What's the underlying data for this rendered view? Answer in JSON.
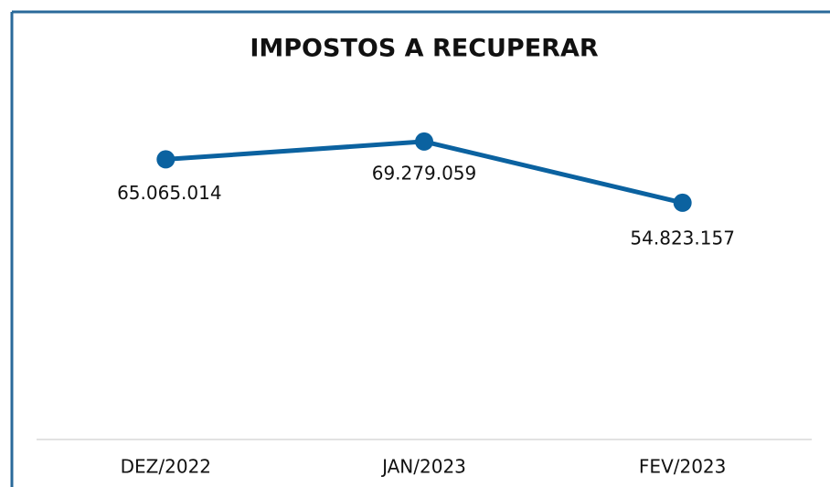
{
  "chart_data": {
    "type": "line",
    "title": "IMPOSTOS A RECUPERAR",
    "categories": [
      "DEZ/2022",
      "JAN/2023",
      "FEV/2023"
    ],
    "series": [
      {
        "color": "#0b62a0",
        "values": [
          65065014,
          69279059,
          54823157
        ],
        "value_labels": [
          "65.065.014",
          "69.279.059",
          "54.823.157"
        ]
      }
    ]
  }
}
